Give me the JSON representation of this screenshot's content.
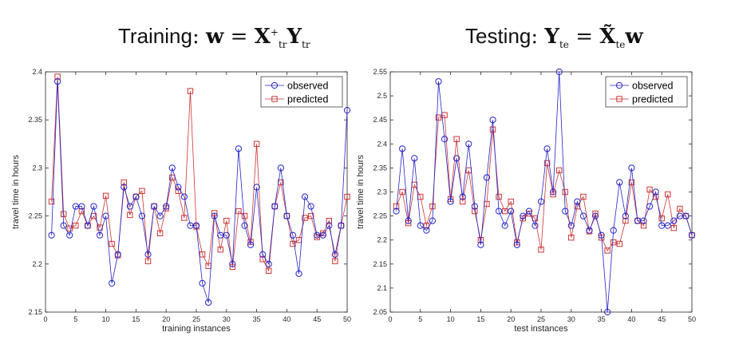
{
  "headings": {
    "left": {
      "label": "Training",
      "colon": ":",
      "lhs": "w",
      "eq": "=",
      "x": "X",
      "x_sub": "tr",
      "x_sup": "+",
      "y": "Y",
      "y_sub": "tr"
    },
    "right": {
      "label": "Testing",
      "colon": ":",
      "lhs": "Y",
      "lhs_sub": "te",
      "eq": "=",
      "x": "X̃",
      "x_sub": "te",
      "w": "w"
    }
  },
  "colors": {
    "observed": "#2323c8",
    "predicted": "#cc3333",
    "axis": "#262626"
  },
  "chart_data": [
    {
      "type": "line",
      "xlabel": "training instances",
      "ylabel": "travel time in hours",
      "xlim": [
        0,
        50
      ],
      "ylim": [
        2.15,
        2.4
      ],
      "xticks": [
        0,
        5,
        10,
        15,
        20,
        25,
        30,
        35,
        40,
        45,
        50
      ],
      "yticks": [
        2.15,
        2.2,
        2.25,
        2.3,
        2.35,
        2.4
      ],
      "legend_position": "top-right",
      "x": [
        1,
        2,
        3,
        4,
        5,
        6,
        7,
        8,
        9,
        10,
        11,
        12,
        13,
        14,
        15,
        16,
        17,
        18,
        19,
        20,
        21,
        22,
        23,
        24,
        25,
        26,
        27,
        28,
        29,
        30,
        31,
        32,
        33,
        34,
        35,
        36,
        37,
        38,
        39,
        40,
        41,
        42,
        43,
        44,
        45,
        46,
        47,
        48,
        49,
        50
      ],
      "series": [
        {
          "name": "observed",
          "marker": "circle",
          "values": [
            2.23,
            2.39,
            2.24,
            2.23,
            2.26,
            2.26,
            2.24,
            2.26,
            2.23,
            2.25,
            2.18,
            2.21,
            2.28,
            2.26,
            2.27,
            2.25,
            2.21,
            2.26,
            2.25,
            2.26,
            2.3,
            2.28,
            2.27,
            2.24,
            2.24,
            2.18,
            2.16,
            2.25,
            2.23,
            2.23,
            2.2,
            2.32,
            2.24,
            2.22,
            2.28,
            2.21,
            2.2,
            2.26,
            2.3,
            2.25,
            2.23,
            2.19,
            2.27,
            2.26,
            2.23,
            2.23,
            2.24,
            2.21,
            2.24,
            2.36
          ]
        },
        {
          "name": "predicted",
          "marker": "square",
          "values": [
            2.265,
            2.395,
            2.252,
            2.237,
            2.24,
            2.255,
            2.24,
            2.25,
            2.238,
            2.271,
            2.221,
            2.209,
            2.285,
            2.251,
            2.27,
            2.276,
            2.203,
            2.26,
            2.232,
            2.258,
            2.29,
            2.276,
            2.248,
            2.38,
            2.239,
            2.21,
            2.198,
            2.253,
            2.215,
            2.245,
            2.197,
            2.255,
            2.25,
            2.223,
            2.325,
            2.205,
            2.193,
            2.26,
            2.285,
            2.25,
            2.221,
            2.225,
            2.248,
            2.25,
            2.228,
            2.232,
            2.245,
            2.203,
            2.24,
            2.27
          ]
        }
      ]
    },
    {
      "type": "line",
      "xlabel": "test instances",
      "ylabel": "travel time in hours",
      "xlim": [
        0,
        50
      ],
      "ylim": [
        2.05,
        2.55
      ],
      "xticks": [
        0,
        5,
        10,
        15,
        20,
        25,
        30,
        35,
        40,
        45,
        50
      ],
      "yticks": [
        2.05,
        2.1,
        2.15,
        2.2,
        2.25,
        2.3,
        2.35,
        2.4,
        2.45,
        2.5,
        2.55
      ],
      "legend_position": "top-right",
      "x": [
        1,
        2,
        3,
        4,
        5,
        6,
        7,
        8,
        9,
        10,
        11,
        12,
        13,
        14,
        15,
        16,
        17,
        18,
        19,
        20,
        21,
        22,
        23,
        24,
        25,
        26,
        27,
        28,
        29,
        30,
        31,
        32,
        33,
        34,
        35,
        36,
        37,
        38,
        39,
        40,
        41,
        42,
        43,
        44,
        45,
        46,
        47,
        48,
        49,
        50
      ],
      "series": [
        {
          "name": "observed",
          "marker": "circle",
          "values": [
            2.26,
            2.39,
            2.24,
            2.37,
            2.23,
            2.22,
            2.24,
            2.53,
            2.41,
            2.28,
            2.37,
            2.29,
            2.4,
            2.27,
            2.19,
            2.33,
            2.45,
            2.26,
            2.23,
            2.26,
            2.19,
            2.25,
            2.26,
            2.23,
            2.28,
            2.39,
            2.3,
            2.55,
            2.26,
            2.23,
            2.28,
            2.25,
            2.22,
            2.25,
            2.21,
            2.05,
            2.22,
            2.32,
            2.25,
            2.35,
            2.24,
            2.24,
            2.27,
            2.3,
            2.23,
            2.23,
            2.24,
            2.25,
            2.25,
            2.21
          ]
        },
        {
          "name": "predicted",
          "marker": "square",
          "values": [
            2.27,
            2.3,
            2.235,
            2.315,
            2.29,
            2.23,
            2.27,
            2.455,
            2.46,
            2.285,
            2.41,
            2.28,
            2.345,
            2.26,
            2.2,
            2.275,
            2.43,
            2.29,
            2.26,
            2.28,
            2.195,
            2.245,
            2.255,
            2.245,
            2.18,
            2.36,
            2.295,
            2.345,
            2.3,
            2.205,
            2.27,
            2.29,
            2.218,
            2.255,
            2.205,
            2.178,
            2.195,
            2.192,
            2.24,
            2.32,
            2.24,
            2.23,
            2.305,
            2.29,
            2.245,
            2.295,
            2.225,
            2.265,
            2.25,
            2.21
          ]
        }
      ]
    }
  ]
}
